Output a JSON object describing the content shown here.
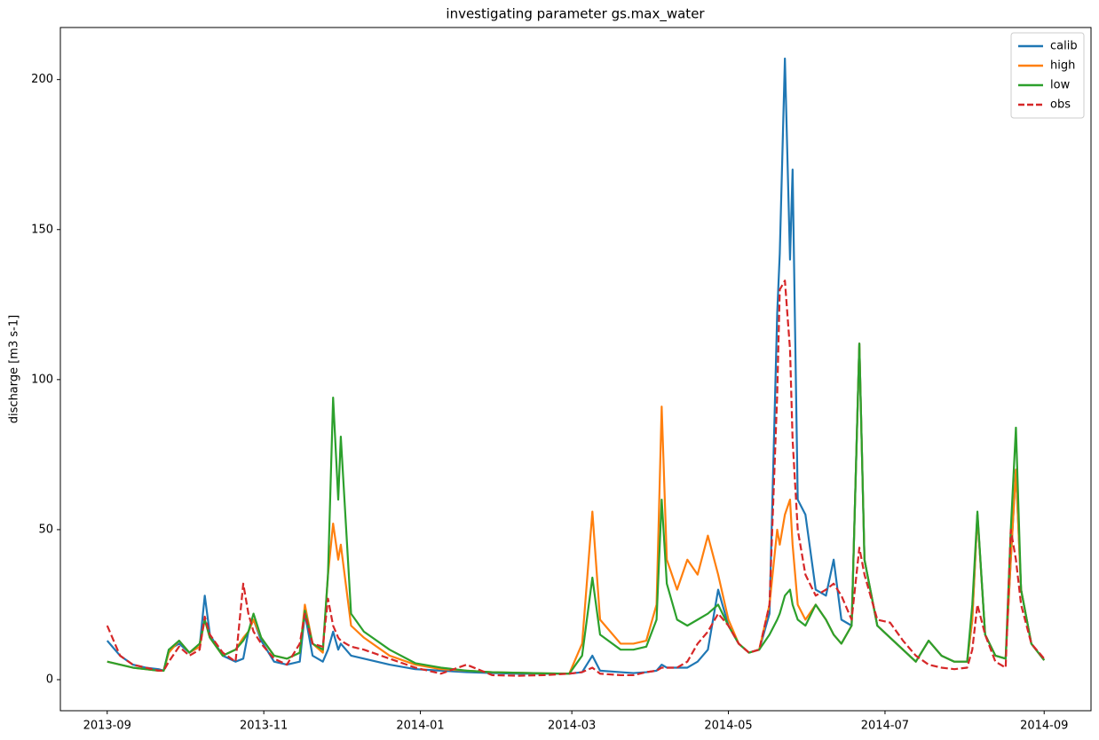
{
  "chart_data": {
    "type": "line",
    "title": "investigating parameter gs.max_water",
    "ylabel": "discharge [m3 s-1]",
    "x": [
      0,
      5,
      10,
      15,
      20,
      22,
      24,
      28,
      32,
      36,
      38,
      40,
      45,
      50,
      53,
      55,
      57,
      60,
      65,
      70,
      75,
      77,
      80,
      84,
      86,
      88,
      90,
      91,
      95,
      100,
      110,
      120,
      130,
      140,
      150,
      160,
      170,
      180,
      185,
      189,
      192,
      200,
      205,
      210,
      214,
      216,
      218,
      222,
      226,
      230,
      234,
      238,
      242,
      246,
      250,
      254,
      258,
      261,
      262,
      264,
      266,
      267,
      269,
      272,
      276,
      280,
      283,
      286,
      290,
      293,
      295,
      300,
      305,
      310,
      315,
      320,
      325,
      330,
      335,
      337,
      339,
      342,
      346,
      350,
      352,
      354,
      356,
      360,
      365
    ],
    "xlim": [
      -18.25,
      383.25
    ],
    "xticks": [
      {
        "value": 0,
        "label": "2013-09"
      },
      {
        "value": 61,
        "label": "2013-11"
      },
      {
        "value": 122,
        "label": "2014-01"
      },
      {
        "value": 181,
        "label": "2014-03"
      },
      {
        "value": 242,
        "label": "2014-05"
      },
      {
        "value": 303,
        "label": "2014-07"
      },
      {
        "value": 365,
        "label": "2014-09"
      }
    ],
    "ylim": [
      -10.35,
      217.35
    ],
    "yticks": [
      0,
      50,
      100,
      150,
      200
    ],
    "legend": "upper right",
    "series": [
      {
        "name": "calib",
        "color": "#1f77b4",
        "linestyle": "solid",
        "values": [
          13,
          8,
          5,
          4,
          3.5,
          3,
          10,
          12,
          9,
          11,
          28,
          15,
          8,
          6,
          7,
          16,
          20,
          13,
          6,
          5,
          6,
          22,
          8,
          6,
          10,
          16,
          10,
          12,
          8,
          7,
          5,
          3.5,
          3,
          2.5,
          2.2,
          2,
          2,
          2,
          2.5,
          8,
          3,
          2.5,
          2.2,
          2.5,
          3,
          5,
          4,
          4,
          4,
          6,
          10,
          30,
          18,
          12,
          9,
          10,
          22,
          122,
          142,
          207,
          140,
          170,
          60,
          55,
          30,
          28,
          40,
          20,
          18,
          112,
          40,
          18,
          14,
          10,
          6,
          13,
          8,
          6,
          6,
          20,
          55,
          15,
          8,
          7,
          40,
          70,
          30,
          12,
          6.5
        ]
      },
      {
        "name": "high",
        "color": "#ff7f0e",
        "linestyle": "solid",
        "values": [
          6,
          5,
          4,
          3.5,
          3,
          3,
          9,
          13,
          9,
          11,
          20,
          14,
          8,
          10,
          14,
          16,
          20,
          14,
          8,
          7,
          9,
          25,
          12,
          9,
          35,
          52,
          40,
          45,
          18,
          14,
          8,
          5,
          3.5,
          3,
          2.5,
          2.3,
          2.1,
          2,
          12,
          56,
          20,
          12,
          12,
          13,
          25,
          91,
          40,
          30,
          40,
          35,
          48,
          35,
          20,
          12,
          9,
          10,
          25,
          50,
          45,
          55,
          60,
          45,
          25,
          20,
          25,
          20,
          15,
          12,
          18,
          112,
          40,
          18,
          14,
          10,
          6,
          13,
          8,
          6,
          6,
          20,
          55,
          15,
          8,
          7,
          40,
          70,
          30,
          12,
          6.5
        ]
      },
      {
        "name": "low",
        "color": "#2ca02c",
        "linestyle": "solid",
        "values": [
          6,
          5,
          4,
          3.5,
          3,
          3,
          10,
          13,
          9,
          12,
          20,
          14,
          8,
          10,
          13,
          16,
          22,
          14,
          8,
          7,
          9,
          23,
          12,
          10,
          35,
          94,
          60,
          81,
          22,
          16,
          10,
          5.5,
          4,
          3,
          2.5,
          2.3,
          2.1,
          2,
          8,
          34,
          15,
          10,
          10,
          11,
          20,
          60,
          32,
          20,
          18,
          20,
          22,
          25,
          18,
          12,
          9,
          10,
          15,
          20,
          22,
          28,
          30,
          25,
          20,
          18,
          25,
          20,
          15,
          12,
          18,
          112,
          40,
          18,
          14,
          10,
          6,
          13,
          8,
          6,
          6,
          25,
          56,
          15,
          8,
          7,
          50,
          84,
          30,
          12,
          6.5
        ]
      },
      {
        "name": "obs",
        "color": "#d62728",
        "linestyle": "dashed",
        "values": [
          18,
          8,
          5,
          4,
          3,
          3,
          6,
          11,
          8,
          10,
          21,
          15,
          9,
          6,
          32,
          22,
          16,
          12,
          7,
          5,
          12,
          22,
          12,
          11,
          27,
          18,
          14,
          13,
          11,
          10,
          7,
          4,
          2,
          5,
          1.5,
          1.3,
          1.5,
          2,
          2.5,
          4,
          2,
          1.5,
          1.5,
          2.5,
          3,
          4,
          4,
          4,
          6,
          12,
          16,
          22,
          18,
          12,
          9,
          10,
          25,
          95,
          130,
          133,
          110,
          80,
          50,
          35,
          28,
          30,
          32,
          28,
          20,
          44,
          35,
          20,
          19,
          13,
          8,
          5,
          4,
          3.5,
          4,
          10,
          25,
          15,
          6,
          4,
          50,
          40,
          25,
          12,
          7
        ]
      }
    ]
  }
}
